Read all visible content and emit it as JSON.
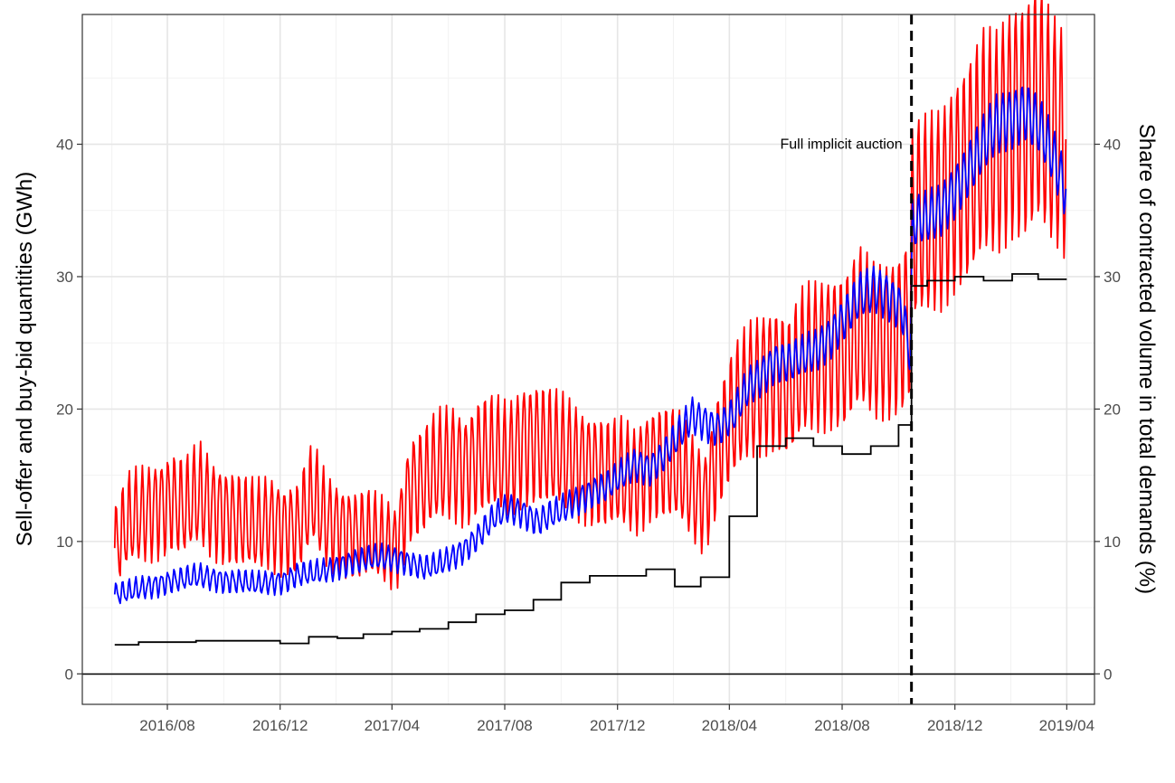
{
  "chart_data": {
    "type": "line",
    "title": "",
    "xlabel": "",
    "ylabel": "Sell-offer and buy-bid quantities (GWh)",
    "ylabel_right": "Share of contracted volume in total demands (%)",
    "xlim": [
      "2016-05-01",
      "2019-05-01"
    ],
    "ylim": [
      -2.3,
      49.8
    ],
    "ylim_right": [
      -2.3,
      49.8
    ],
    "x_ticks": [
      "2016/08",
      "2016/12",
      "2017/04",
      "2017/08",
      "2017/12",
      "2018/04",
      "2018/08",
      "2018/12",
      "2019/04"
    ],
    "y_ticks": [
      "0",
      "10",
      "20",
      "30",
      "40"
    ],
    "y_ticks_right": [
      "0",
      "10",
      "20",
      "30",
      "40"
    ],
    "grid": true,
    "legend": "none",
    "annotations": [
      {
        "text": "Full implicit auction",
        "x": "2018-10-15",
        "y": 40,
        "line": "dashed vertical"
      }
    ],
    "series": [
      {
        "color": "#ff0000",
        "axis": "left",
        "x": [
          "2016-06-05",
          "2016-06-20",
          "2016-07-05",
          "2016-07-20",
          "2016-08-05",
          "2016-08-20",
          "2016-09-05",
          "2016-09-20",
          "2016-10-05",
          "2016-10-20",
          "2016-11-05",
          "2016-11-20",
          "2016-12-05",
          "2016-12-20",
          "2017-01-05",
          "2017-01-20",
          "2017-02-05",
          "2017-02-20",
          "2017-03-05",
          "2017-03-20",
          "2017-04-05",
          "2017-04-20",
          "2017-05-05",
          "2017-05-20",
          "2017-06-05",
          "2017-06-20",
          "2017-07-05",
          "2017-07-20",
          "2017-08-05",
          "2017-08-20",
          "2017-09-05",
          "2017-09-20",
          "2017-10-05",
          "2017-10-20",
          "2017-11-05",
          "2017-11-20",
          "2017-12-05",
          "2017-12-20",
          "2018-01-05",
          "2018-01-20",
          "2018-02-05",
          "2018-02-20",
          "2018-03-05",
          "2018-03-20",
          "2018-04-05",
          "2018-04-20",
          "2018-05-05",
          "2018-05-20",
          "2018-06-05",
          "2018-06-20",
          "2018-07-05",
          "2018-07-20",
          "2018-08-05",
          "2018-08-20",
          "2018-09-05",
          "2018-09-20",
          "2018-10-05",
          "2018-10-14",
          "2018-10-16",
          "2018-11-01",
          "2018-11-15",
          "2018-12-01",
          "2018-12-15",
          "2019-01-01",
          "2019-01-15",
          "2019-02-01",
          "2019-02-15",
          "2019-03-01",
          "2019-03-15",
          "2019-03-31"
        ],
        "values": [
          9.5,
          11.5,
          12,
          12.5,
          13,
          12.5,
          13.5,
          12.5,
          12,
          11.5,
          11,
          11.5,
          11,
          11,
          13.5,
          11.5,
          11,
          10.5,
          10.5,
          10,
          9.5,
          14,
          14.5,
          15.5,
          16,
          15.5,
          16.5,
          16.5,
          16,
          17.5,
          17.5,
          17,
          16.5,
          16,
          15.5,
          15,
          15,
          14.5,
          16,
          16,
          15.5,
          14,
          13,
          17,
          19.5,
          21,
          22,
          22.5,
          21.5,
          23.5,
          24,
          24.5,
          24.5,
          26,
          25,
          25.5,
          26,
          27,
          34,
          34.5,
          35,
          37,
          38,
          40,
          40,
          42,
          42,
          43,
          41,
          40
        ]
      },
      {
        "color": "#0000ff",
        "axis": "left",
        "x": [
          "2016-06-05",
          "2016-06-20",
          "2016-07-05",
          "2016-07-20",
          "2016-08-05",
          "2016-08-20",
          "2016-09-05",
          "2016-09-20",
          "2016-10-05",
          "2016-10-20",
          "2016-11-05",
          "2016-11-20",
          "2016-12-05",
          "2016-12-20",
          "2017-01-05",
          "2017-01-20",
          "2017-02-05",
          "2017-02-20",
          "2017-03-05",
          "2017-03-20",
          "2017-04-05",
          "2017-04-20",
          "2017-05-05",
          "2017-05-20",
          "2017-06-05",
          "2017-06-20",
          "2017-07-05",
          "2017-07-20",
          "2017-08-05",
          "2017-08-20",
          "2017-09-05",
          "2017-09-20",
          "2017-10-05",
          "2017-10-20",
          "2017-11-05",
          "2017-11-20",
          "2017-12-05",
          "2017-12-20",
          "2018-01-05",
          "2018-01-20",
          "2018-02-05",
          "2018-02-20",
          "2018-03-05",
          "2018-03-20",
          "2018-04-05",
          "2018-04-20",
          "2018-05-05",
          "2018-05-20",
          "2018-06-05",
          "2018-06-20",
          "2018-07-05",
          "2018-07-20",
          "2018-08-05",
          "2018-08-20",
          "2018-09-05",
          "2018-09-20",
          "2018-10-05",
          "2018-10-14",
          "2018-10-16",
          "2018-11-01",
          "2018-11-15",
          "2018-12-01",
          "2018-12-15",
          "2019-01-01",
          "2019-01-15",
          "2019-02-01",
          "2019-02-15",
          "2019-03-01",
          "2019-03-15",
          "2019-03-31"
        ],
        "values": [
          6,
          6.2,
          6.5,
          6.7,
          7,
          7.2,
          7.4,
          7.2,
          7,
          7,
          6.8,
          6.9,
          7,
          7.5,
          7.6,
          7.8,
          8.2,
          8.5,
          8.7,
          8.8,
          8.7,
          8.4,
          8,
          8.2,
          8.8,
          9.5,
          10.5,
          11.8,
          12.5,
          12.2,
          11.5,
          12,
          12.5,
          13.2,
          13.8,
          14.2,
          15,
          15.8,
          15.5,
          16.5,
          18,
          19.5,
          19,
          18.5,
          19.5,
          21.5,
          22.5,
          23.5,
          23.5,
          24,
          24.5,
          25.5,
          27,
          28.5,
          29,
          28.5,
          27.5,
          24,
          34,
          34.5,
          35,
          36.5,
          38,
          40,
          41.5,
          42,
          42.5,
          41.5,
          39.5,
          36.5
        ]
      },
      {
        "color": "#000000",
        "axis": "right",
        "step": true,
        "x": [
          "2016-06-05",
          "2016-07-01",
          "2016-08-01",
          "2016-09-01",
          "2016-10-01",
          "2016-11-01",
          "2016-12-01",
          "2017-01-01",
          "2017-02-01",
          "2017-03-01",
          "2017-04-01",
          "2017-05-01",
          "2017-06-01",
          "2017-07-01",
          "2017-08-01",
          "2017-09-01",
          "2017-10-01",
          "2017-11-01",
          "2017-12-01",
          "2018-01-01",
          "2018-02-01",
          "2018-03-01",
          "2018-04-01",
          "2018-05-01",
          "2018-06-01",
          "2018-07-01",
          "2018-08-01",
          "2018-09-01",
          "2018-10-01",
          "2018-10-15",
          "2018-11-01",
          "2018-12-01",
          "2019-01-01",
          "2019-02-01",
          "2019-03-01",
          "2019-04-01"
        ],
        "values": [
          2.2,
          2.4,
          2.4,
          2.5,
          2.5,
          2.5,
          2.3,
          2.8,
          2.7,
          3.0,
          3.2,
          3.4,
          3.9,
          4.5,
          4.8,
          5.6,
          6.9,
          7.4,
          7.4,
          7.9,
          6.6,
          7.3,
          11.9,
          17.2,
          17.8,
          17.2,
          16.6,
          17.2,
          18.8,
          29.3,
          29.7,
          30.0,
          29.7,
          30.2,
          29.8,
          29.8
        ]
      }
    ]
  }
}
